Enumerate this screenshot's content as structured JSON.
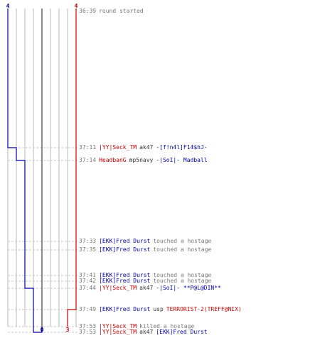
{
  "colors": {
    "terrorist": "#c00000",
    "ct": "#0000a8",
    "timestamp": "#777777",
    "grid": "#b8b8b8",
    "dash": "#c8c8c8",
    "center_line": "#666666"
  },
  "team_counts": {
    "ct_start": "4",
    "t_start": "4",
    "ct_end": "0",
    "t_end": "3"
  },
  "events": [
    {
      "time": "36:39",
      "type": "message",
      "text": "round started",
      "ct_alive": 4,
      "t_alive": 4
    },
    {
      "time": "37:11",
      "type": "kill",
      "killer": "|YY|Seck_TM",
      "killer_team": "T",
      "weapon": "ak47",
      "victim": "-[f!n4l]F14$hJ-",
      "victim_team": "CT",
      "ct_alive": 3,
      "t_alive": 4
    },
    {
      "time": "37:14",
      "type": "kill",
      "killer": "HeadbanG",
      "killer_team": "T",
      "weapon": "mp5navy",
      "victim": "-|SoI|- Madball",
      "victim_team": "CT",
      "ct_alive": 2,
      "t_alive": 4
    },
    {
      "time": "37:33",
      "type": "action",
      "actor": "[EKK]Fred Durst",
      "actor_team": "CT",
      "text": "touched a hostage",
      "ct_alive": 2,
      "t_alive": 4
    },
    {
      "time": "37:35",
      "type": "action",
      "actor": "[EKK]Fred Durst",
      "actor_team": "CT",
      "text": "touched a hostage",
      "ct_alive": 2,
      "t_alive": 4
    },
    {
      "time": "37:41",
      "type": "action",
      "actor": "[EKK]Fred Durst",
      "actor_team": "CT",
      "text": "touched a hostage",
      "ct_alive": 2,
      "t_alive": 4
    },
    {
      "time": "37:42",
      "type": "action",
      "actor": "[EKK]Fred Durst",
      "actor_team": "CT",
      "text": "touched a hostage",
      "ct_alive": 2,
      "t_alive": 4
    },
    {
      "time": "37:44",
      "type": "kill",
      "killer": "|YY|Seck_TM",
      "killer_team": "T",
      "weapon": "ak47",
      "victim": "-|SoI|- **P@L@DIN**",
      "victim_team": "CT",
      "ct_alive": 1,
      "t_alive": 4
    },
    {
      "time": "37:49",
      "type": "kill",
      "killer": "[EKK]Fred Durst",
      "killer_team": "CT",
      "weapon": "usp",
      "victim": "TERRORIST-2(TREFF@NIX)",
      "victim_team": "T",
      "ct_alive": 1,
      "t_alive": 3
    },
    {
      "time": "37:53",
      "type": "action",
      "actor": "|YY|Seck_TM",
      "actor_team": "T",
      "text": "killed a hostage",
      "ct_alive": 1,
      "t_alive": 3
    },
    {
      "time": "37:53",
      "type": "kill",
      "killer": "|YY|Seck_TM",
      "killer_team": "T",
      "weapon": "ak47",
      "victim": "[EKK]Fred Durst",
      "victim_team": "CT",
      "ct_alive": 0,
      "t_alive": 3
    }
  ]
}
